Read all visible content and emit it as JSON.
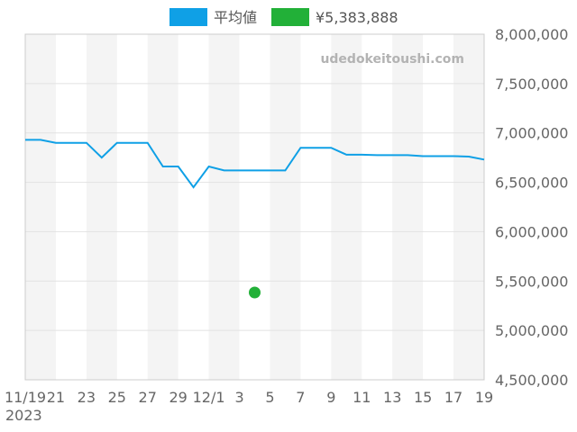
{
  "watermark": "udedokeitoushi.com",
  "chart_data": {
    "type": "line",
    "title": "",
    "xlabel": "",
    "ylabel": "",
    "ylim": [
      4500000,
      8000000
    ],
    "y_ticks": [
      4500000,
      5000000,
      5500000,
      6000000,
      6500000,
      7000000,
      7500000,
      8000000
    ],
    "y_tick_labels": [
      "4,500,000",
      "5,000,000",
      "5,500,000",
      "6,000,000",
      "6,500,000",
      "7,000,000",
      "7,500,000",
      "8,000,000"
    ],
    "y_axis_side": "right",
    "grid": true,
    "legend_position": "top-center",
    "x": [
      "11/19",
      "11/20",
      "11/21",
      "11/22",
      "11/23",
      "11/24",
      "11/25",
      "11/26",
      "11/27",
      "11/28",
      "11/29",
      "11/30",
      "12/1",
      "12/2",
      "12/3",
      "12/4",
      "12/5",
      "12/6",
      "12/7",
      "12/8",
      "12/9",
      "12/10",
      "12/11",
      "12/12",
      "12/13",
      "12/14",
      "12/15",
      "12/16",
      "12/17",
      "12/18",
      "12/19"
    ],
    "x_tick_labels": [
      "11/19",
      "21",
      "23",
      "25",
      "27",
      "29",
      "12/1",
      "3",
      "5",
      "7",
      "9",
      "11",
      "13",
      "15",
      "17",
      "19"
    ],
    "x_year_label": "2023",
    "series": [
      {
        "name": "平均値",
        "color": "#0fa0e6",
        "type": "line",
        "values": [
          6930000,
          6930000,
          6900000,
          6900000,
          6900000,
          6750000,
          6900000,
          6900000,
          6900000,
          6660000,
          6660000,
          6450000,
          6660000,
          6620000,
          6620000,
          6620000,
          6620000,
          6620000,
          6850000,
          6850000,
          6850000,
          6780000,
          6780000,
          6775000,
          6775000,
          6775000,
          6765000,
          6765000,
          6765000,
          6760000,
          6730000
        ]
      },
      {
        "name": "¥5,383,888",
        "color": "#22b038",
        "type": "point",
        "x": "12/4",
        "value": 5383888
      }
    ]
  }
}
